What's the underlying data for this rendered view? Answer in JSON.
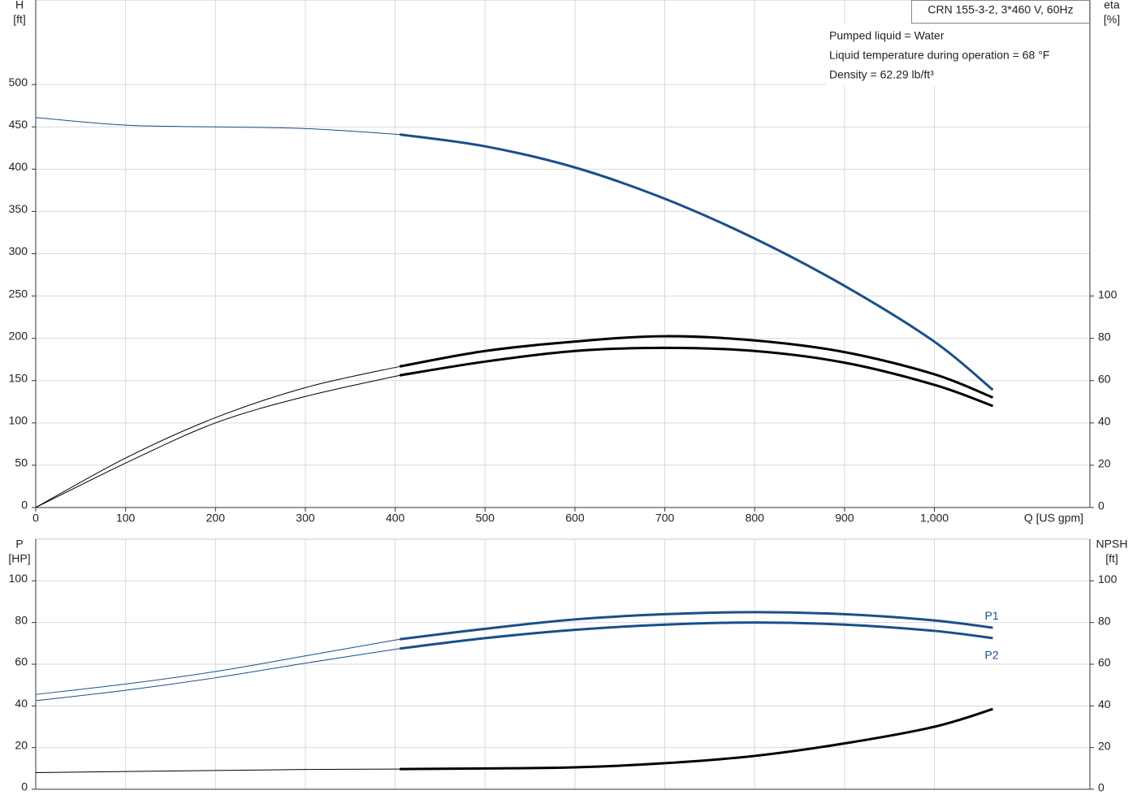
{
  "chart_data": [
    {
      "type": "line",
      "title": "CRN 155-3-2, 3*460 V, 60Hz",
      "annotations": [
        "Pumped liquid = Water",
        "Liquid temperature during operation = 68 °F",
        "Density = 62.29 lb/ft³"
      ],
      "xlabel": "Q [US gpm]",
      "ylabel": [
        "H",
        "[ft]"
      ],
      "y2label": [
        "eta",
        "[%]"
      ],
      "x": [
        0,
        100,
        200,
        300,
        405,
        500,
        600,
        700,
        800,
        900,
        1000,
        1065
      ],
      "xlim": [
        0,
        1173
      ],
      "xticks": [
        0,
        100,
        200,
        300,
        400,
        500,
        600,
        700,
        800,
        900,
        {
          "value": 1000,
          "label": "1,000"
        }
      ],
      "ylim": [
        0,
        600
      ],
      "yticks": [
        0,
        50,
        100,
        150,
        200,
        250,
        300,
        350,
        400,
        450,
        500
      ],
      "y2lim": [
        0,
        240
      ],
      "y2ticks": [
        0,
        20,
        40,
        60,
        80,
        100
      ],
      "grid": true,
      "operating_range": [
        405,
        1065
      ],
      "series": [
        {
          "color": "#1a4f8a",
          "values": [
            461,
            452,
            450,
            448,
            441,
            427,
            402,
            365,
            318,
            262,
            196,
            139
          ]
        },
        {
          "color": "#000000",
          "axis": "y2",
          "values": [
            0,
            23.4,
            42.5,
            56.7,
            66.7,
            74,
            78.5,
            81,
            79,
            73.5,
            63,
            52
          ]
        },
        {
          "color": "#000000",
          "axis": "y2",
          "values": [
            0,
            21,
            40,
            52.5,
            62.5,
            69,
            74,
            75.5,
            74,
            68.5,
            58,
            48
          ]
        }
      ]
    },
    {
      "type": "line",
      "ylabel": [
        "P",
        "[HP]"
      ],
      "y2label": [
        "NPSH",
        "[ft]"
      ],
      "x": [
        0,
        100,
        200,
        300,
        405,
        500,
        600,
        700,
        800,
        900,
        1000,
        1065
      ],
      "xlim": [
        0,
        1173
      ],
      "xticks": [
        0,
        100,
        200,
        300,
        400,
        500,
        600,
        700,
        800,
        900,
        1000
      ],
      "ylim": [
        0,
        120
      ],
      "yticks": [
        0,
        20,
        40,
        60,
        80,
        100
      ],
      "y2lim": [
        0,
        120
      ],
      "y2ticks": [
        0,
        20,
        40,
        60,
        80,
        100
      ],
      "grid": true,
      "operating_range": [
        405,
        1065
      ],
      "series": [
        {
          "name": "P1",
          "color": "#1a4f8a",
          "values": [
            45.5,
            50.5,
            56.5,
            64,
            72,
            77,
            81.5,
            84,
            85,
            84,
            81,
            77.5
          ]
        },
        {
          "name": "P2",
          "color": "#1a4f8a",
          "values": [
            42.5,
            47.5,
            53.5,
            60.5,
            67.5,
            72.5,
            76.5,
            79,
            80,
            79,
            76,
            72.5
          ]
        },
        {
          "color": "#000000",
          "axis": "y2",
          "values": [
            8,
            8.5,
            9,
            9.5,
            9.7,
            10,
            10.5,
            12.5,
            16,
            22,
            30,
            38.5
          ]
        }
      ]
    }
  ]
}
